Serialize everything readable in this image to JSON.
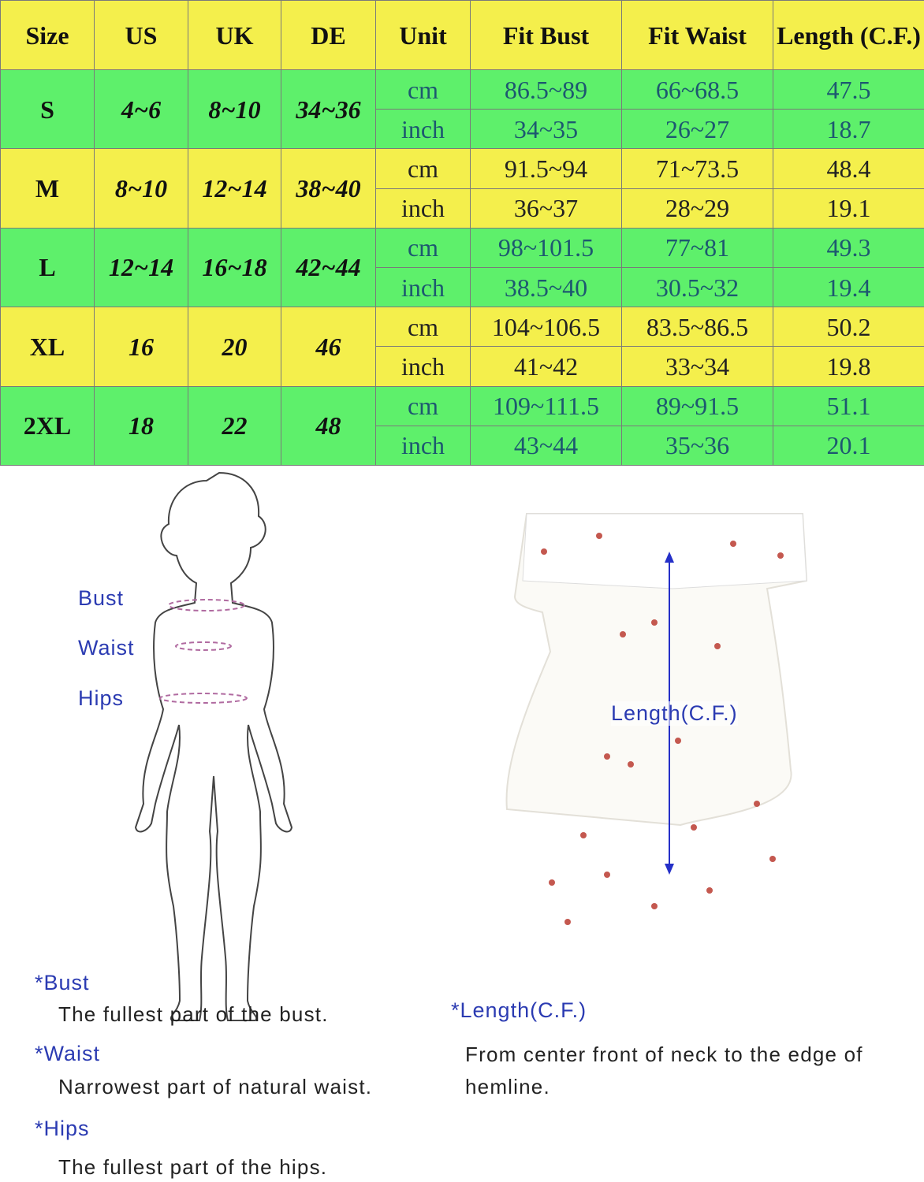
{
  "table": {
    "header": [
      "Size",
      "US",
      "UK",
      "DE",
      "Unit",
      "Fit Bust",
      "Fit Waist",
      "Length (C.F.)"
    ],
    "rows": [
      {
        "size": "S",
        "us": "4~6",
        "uk": "8~10",
        "de": "34~36",
        "measurements": [
          [
            "cm",
            "86.5~89",
            "66~68.5",
            "47.5"
          ],
          [
            "inch",
            "34~35",
            "26~27",
            "18.7"
          ]
        ]
      },
      {
        "size": "M",
        "us": "8~10",
        "uk": "12~14",
        "de": "38~40",
        "measurements": [
          [
            "cm",
            "91.5~94",
            "71~73.5",
            "48.4"
          ],
          [
            "inch",
            "36~37",
            "28~29",
            "19.1"
          ]
        ]
      },
      {
        "size": "L",
        "us": "12~14",
        "uk": "16~18",
        "de": "42~44",
        "measurements": [
          [
            "cm",
            "98~101.5",
            "77~81",
            "49.3"
          ],
          [
            "inch",
            "38.5~40",
            "30.5~32",
            "19.4"
          ]
        ]
      },
      {
        "size": "XL",
        "us": "16",
        "uk": "20",
        "de": "46",
        "measurements": [
          [
            "cm",
            "104~106.5",
            "83.5~86.5",
            "50.2"
          ],
          [
            "inch",
            "41~42",
            "33~34",
            "19.8"
          ]
        ]
      },
      {
        "size": "2XL",
        "us": "18",
        "uk": "22",
        "de": "48",
        "measurements": [
          [
            "cm",
            "109~111.5",
            "89~91.5",
            "51.1"
          ],
          [
            "inch",
            "43~44",
            "35~36",
            "20.1"
          ]
        ]
      }
    ]
  },
  "figure_labels": {
    "bust": "Bust",
    "waist": "Waist",
    "hips": "Hips",
    "length": "Length(C.F.)"
  },
  "definitions": [
    {
      "term": "*Bust",
      "text": "The fullest part of the bust."
    },
    {
      "term": "*Waist",
      "text": "Narrowest part of natural waist."
    },
    {
      "term": "*Hips",
      "text": "The fullest part of the hips."
    },
    {
      "term": "*Length(C.F.)",
      "text": "From center front of neck to the edge of hemline."
    }
  ]
}
